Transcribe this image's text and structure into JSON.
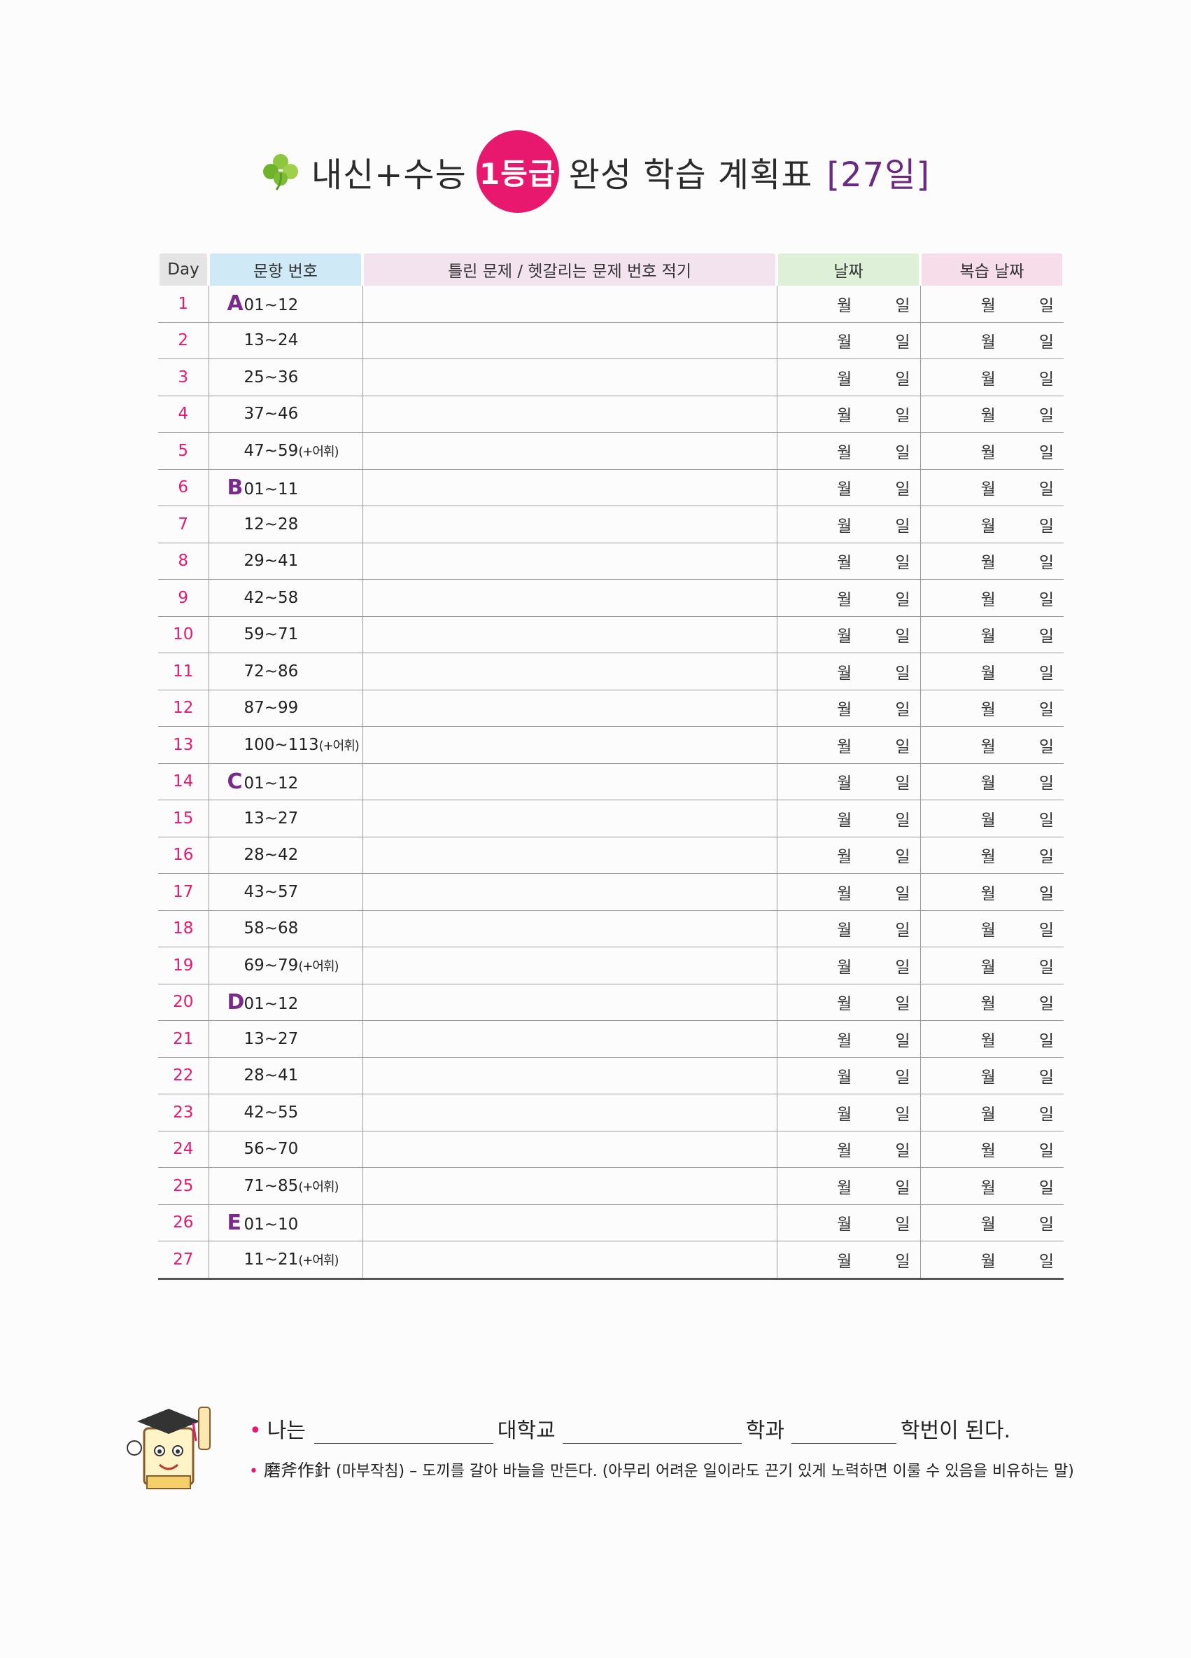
{
  "title": {
    "prefix": "내신+수능",
    "badge": "1등급",
    "main": "완성 학습 계획표",
    "days": "[27일]"
  },
  "table": {
    "headers": {
      "day": "Day",
      "range": "문항 번호",
      "wrong": "틀린 문제 / 헷갈리는 문제 번호 적기",
      "date": "날짜",
      "review": "복습 날짜"
    },
    "month_label": "월",
    "day_label": "일",
    "rows": [
      {
        "day": "1",
        "section": "A",
        "range": "01~12",
        "vocab": ""
      },
      {
        "day": "2",
        "section": "",
        "range": "13~24",
        "vocab": ""
      },
      {
        "day": "3",
        "section": "",
        "range": "25~36",
        "vocab": ""
      },
      {
        "day": "4",
        "section": "",
        "range": "37~46",
        "vocab": ""
      },
      {
        "day": "5",
        "section": "",
        "range": "47~59",
        "vocab": "(+어휘)"
      },
      {
        "day": "6",
        "section": "B",
        "range": "01~11",
        "vocab": ""
      },
      {
        "day": "7",
        "section": "",
        "range": "12~28",
        "vocab": ""
      },
      {
        "day": "8",
        "section": "",
        "range": "29~41",
        "vocab": ""
      },
      {
        "day": "9",
        "section": "",
        "range": "42~58",
        "vocab": ""
      },
      {
        "day": "10",
        "section": "",
        "range": "59~71",
        "vocab": ""
      },
      {
        "day": "11",
        "section": "",
        "range": "72~86",
        "vocab": ""
      },
      {
        "day": "12",
        "section": "",
        "range": "87~99",
        "vocab": ""
      },
      {
        "day": "13",
        "section": "",
        "range": "100~113",
        "vocab": "(+어휘)"
      },
      {
        "day": "14",
        "section": "C",
        "range": "01~12",
        "vocab": ""
      },
      {
        "day": "15",
        "section": "",
        "range": "13~27",
        "vocab": ""
      },
      {
        "day": "16",
        "section": "",
        "range": "28~42",
        "vocab": ""
      },
      {
        "day": "17",
        "section": "",
        "range": "43~57",
        "vocab": ""
      },
      {
        "day": "18",
        "section": "",
        "range": "58~68",
        "vocab": ""
      },
      {
        "day": "19",
        "section": "",
        "range": "69~79",
        "vocab": "(+어휘)"
      },
      {
        "day": "20",
        "section": "D",
        "range": "01~12",
        "vocab": ""
      },
      {
        "day": "21",
        "section": "",
        "range": "13~27",
        "vocab": ""
      },
      {
        "day": "22",
        "section": "",
        "range": "28~41",
        "vocab": ""
      },
      {
        "day": "23",
        "section": "",
        "range": "42~55",
        "vocab": ""
      },
      {
        "day": "24",
        "section": "",
        "range": "56~70",
        "vocab": ""
      },
      {
        "day": "25",
        "section": "",
        "range": "71~85",
        "vocab": "(+어휘)"
      },
      {
        "day": "26",
        "section": "E",
        "range": "01~10",
        "vocab": ""
      },
      {
        "day": "27",
        "section": "",
        "range": "11~21",
        "vocab": "(+어휘)"
      }
    ]
  },
  "footer": {
    "line1": {
      "bullet": "•",
      "prefix": "나는",
      "university": "대학교",
      "department": "학과",
      "suffix": "학번이 된다."
    },
    "line2": {
      "bullet": "•",
      "hanja": "磨斧作針",
      "reading": "(마부작침)",
      "meaning": "– 도끼를 갈아 바늘을 만든다. (아무리 어려운 일이라도 끈기 있게 노력하면 이룰 수 있음을 비유하는 말)"
    }
  },
  "colors": {
    "accent_pink": "#e8186e",
    "section_purple": "#7a2a8c",
    "days_purple": "#6a2a83"
  },
  "icons": {
    "title_icon": "clover-icon",
    "footer_icon": "mascot-graduate-icon"
  }
}
